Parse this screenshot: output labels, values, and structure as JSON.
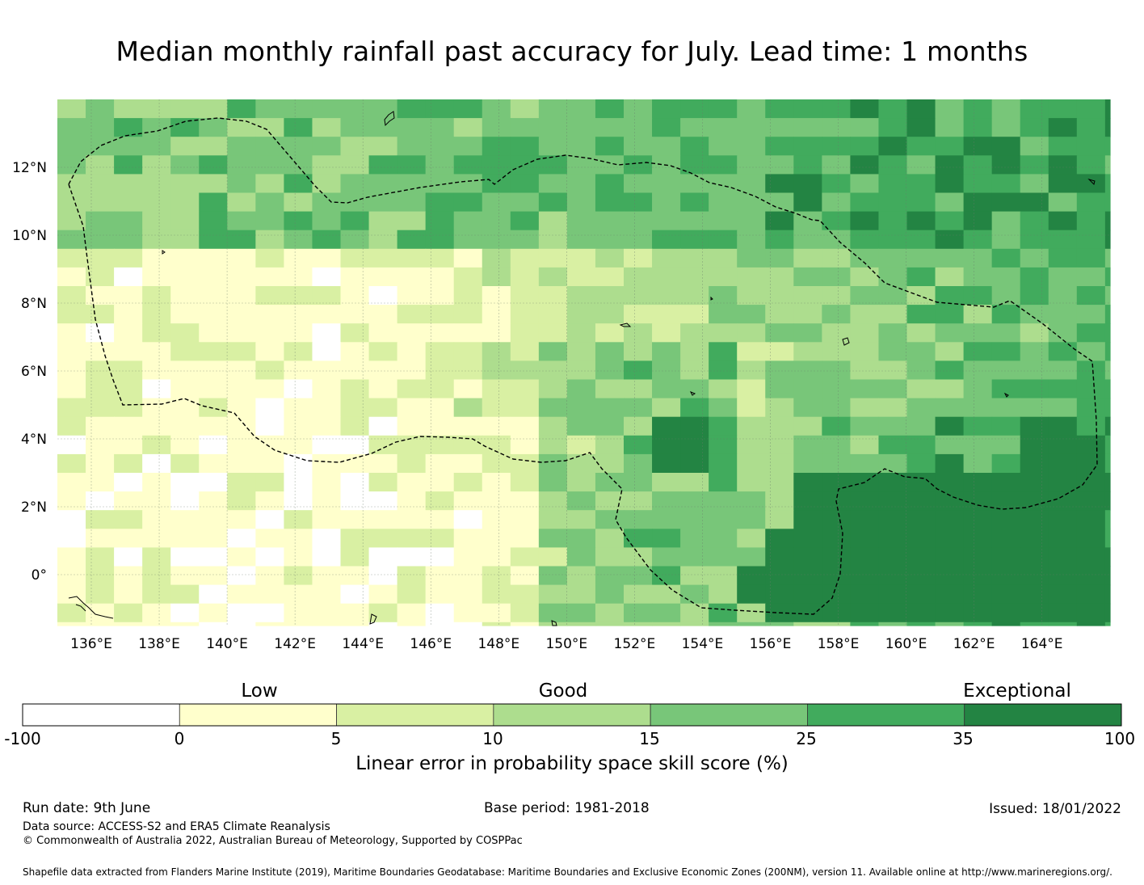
{
  "title": "Median monthly rainfall past accuracy for July. Lead time: 1 months",
  "map": {
    "lon_labels": [
      "136°E",
      "138°E",
      "140°E",
      "142°E",
      "144°E",
      "146°E",
      "148°E",
      "150°E",
      "152°E",
      "154°E",
      "156°E",
      "158°E",
      "160°E",
      "162°E",
      "164°E"
    ],
    "lat_labels": [
      "12°N",
      "10°N",
      "8°N",
      "6°N",
      "4°N",
      "2°N",
      "0°"
    ],
    "gridlines": true,
    "boundary_style": "dashed",
    "legend_placement": "bottom"
  },
  "colorbar": {
    "group_labels": [
      "Low",
      "Good",
      "Exceptional"
    ],
    "ticks": [
      "-100",
      "0",
      "5",
      "10",
      "15",
      "25",
      "35",
      "100"
    ],
    "colors": [
      "#ffffff",
      "#ffffcc",
      "#d9f0a3",
      "#addd8e",
      "#78c679",
      "#41ab5d",
      "#238443"
    ],
    "title": "Linear error in probability space skill score (%)"
  },
  "footer": {
    "run_date": "Run date: 9th June",
    "base_period": "Base period: 1981-2018",
    "issued": "Issued: 18/01/2022",
    "data_source": "Data source: ACCESS-S2 and ERA5 Climate Reanalysis",
    "copyright": "© Commonwealth of Australia 2022, Australian Bureau of Meteorology, Supported by COSPPac",
    "shapefile": "Shapefile data extracted from Flanders Marine Institute (2019), Maritime Boundaries Geodatabase: Maritime Boundaries and Exclusive Economic Zones (200NM), version 11. Available online at http://www.marineregions.org/."
  }
}
